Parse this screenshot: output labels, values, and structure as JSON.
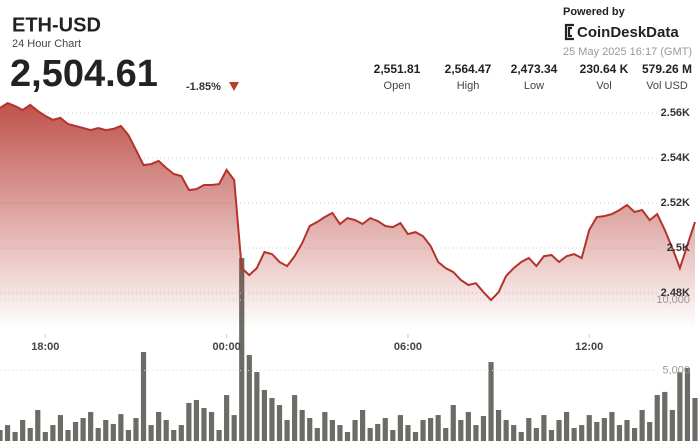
{
  "header": {
    "title": "ETH-USD",
    "subtitle": "24 Hour Chart",
    "price": "2,504.61",
    "change": "-1.85%",
    "powered_by": "Powered by",
    "brand": "CoinDeskData",
    "timestamp": "25 May 2025 16:17 (GMT)",
    "stats": [
      {
        "value": "2,551.81",
        "label": "Open"
      },
      {
        "value": "2,564.47",
        "label": "High"
      },
      {
        "value": "2,473.34",
        "label": "Low"
      },
      {
        "value": "230.64 K",
        "label": "Vol"
      },
      {
        "value": "579.26 M",
        "label": "Vol USD"
      }
    ]
  },
  "chart_data": {
    "type": "line",
    "categories": [
      null,
      null,
      null,
      null,
      null,
      null,
      "18:00",
      null,
      null,
      null,
      null,
      null,
      null,
      null,
      null,
      null,
      null,
      null,
      null,
      null,
      null,
      null,
      null,
      null,
      null,
      null,
      null,
      null,
      null,
      null,
      "00:00",
      null,
      null,
      null,
      null,
      null,
      null,
      null,
      null,
      null,
      null,
      null,
      null,
      null,
      null,
      null,
      null,
      null,
      null,
      null,
      null,
      null,
      null,
      null,
      "06:00",
      null,
      null,
      null,
      null,
      null,
      null,
      null,
      null,
      null,
      null,
      null,
      null,
      null,
      null,
      null,
      null,
      null,
      null,
      null,
      null,
      null,
      null,
      null,
      "12:00",
      null,
      null,
      null,
      null,
      null,
      null,
      null,
      null,
      null,
      null,
      null,
      null,
      null,
      null
    ],
    "series": [
      {
        "color": "#b3342c",
        "values": [
          2562.2,
          2564.4,
          2563.1,
          2561.3,
          2563.6,
          2560.9,
          2558.7,
          2556.9,
          2557.8,
          2555.1,
          2554.2,
          2553.3,
          2552.4,
          2553.3,
          2552.4,
          2552.9,
          2554.2,
          2550.2,
          2543.6,
          2536.9,
          2537.3,
          2538.7,
          2535.6,
          2532.9,
          2532.0,
          2525.8,
          2526.2,
          2528.0,
          2528.0,
          2528.4,
          2534.7,
          2530.2,
          2491.1,
          2488.0,
          2491.1,
          2498.2,
          2497.3,
          2493.8,
          2492.0,
          2496.4,
          2502.2,
          2509.8,
          2511.6,
          2513.8,
          2515.6,
          2510.7,
          2513.3,
          2512.4,
          2510.7,
          2513.3,
          2512.0,
          2509.8,
          2509.3,
          2511.1,
          2506.2,
          2507.1,
          2505.3,
          2500.9,
          2493.8,
          2491.1,
          2489.3,
          2485.8,
          2483.6,
          2484.4,
          2480.4,
          2476.9,
          2480.4,
          2487.6,
          2491.1,
          2493.8,
          2495.6,
          2492.0,
          2496.4,
          2496.9,
          2493.8,
          2496.4,
          2497.3,
          2495.6,
          2508.0,
          2513.8,
          2514.2,
          2515.1,
          2516.9,
          2519.1,
          2516.0,
          2516.9,
          2512.4,
          2515.1,
          2508.0,
          2500.0,
          2491.1,
          2501.3,
          2511.6
        ]
      },
      {
        "color": "#5c5c56",
        "axis": "y2",
        "values": [
          780,
          1130,
          640,
          1490,
          920,
          2200,
          640,
          1130,
          1840,
          780,
          1350,
          1630,
          2060,
          920,
          1490,
          1210,
          1910,
          780,
          1630,
          6310,
          1130,
          2060,
          1490,
          780,
          1130,
          2700,
          2910,
          2340,
          2060,
          780,
          3260,
          1840,
          12980,
          6100,
          4890,
          3620,
          3050,
          2550,
          1490,
          3260,
          2200,
          1630,
          920,
          2060,
          1490,
          1130,
          640,
          1490,
          2200,
          920,
          1210,
          1630,
          780,
          1840,
          1130,
          640,
          1490,
          1630,
          1840,
          920,
          2550,
          1490,
          2060,
          1130,
          1770,
          5600,
          2200,
          1490,
          1130,
          640,
          1630,
          920,
          1840,
          780,
          1490,
          2060,
          920,
          1130,
          1840,
          1350,
          1630,
          2060,
          1130,
          1490,
          920,
          2200,
          1350,
          3260,
          3480,
          2200,
          4890,
          5180,
          3050
        ]
      }
    ],
    "ylim": [
      2463.6,
      2570.2
    ],
    "yticks": [
      {
        "value": 2560,
        "label": "2.56K"
      },
      {
        "value": 2540,
        "label": "2.54K"
      },
      {
        "value": 2520,
        "label": "2.52K"
      },
      {
        "value": 2500,
        "label": "2.5K"
      },
      {
        "value": 2480,
        "label": "2.48K"
      }
    ],
    "y2lim": [
      0,
      15000
    ],
    "y2ticks": [
      {
        "value": 10000,
        "label": "10,000"
      },
      {
        "value": 5000,
        "label": "5,000"
      }
    ],
    "grid": true
  }
}
